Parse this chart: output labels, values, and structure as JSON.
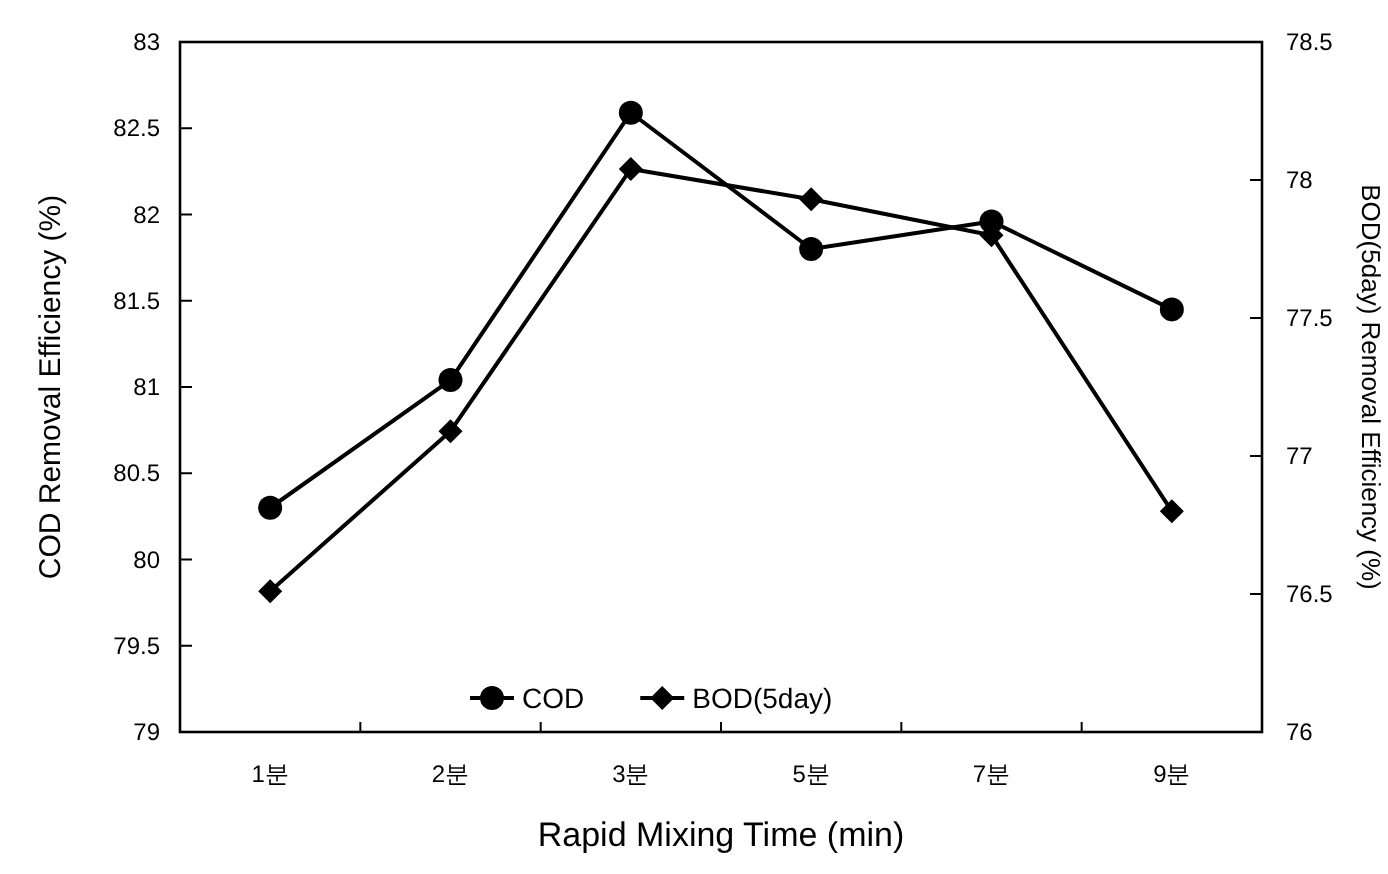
{
  "chart_data": {
    "type": "line",
    "xlabel": "Rapid Mixing Time (min)",
    "ylabel": "COD Removal Efficiency (%)",
    "y2label": "BOD(5day) Removal Efficiency (%)",
    "categories": [
      "1분",
      "2분",
      "3분",
      "5분",
      "7분",
      "9분"
    ],
    "series": [
      {
        "name": "COD",
        "color": "#000000",
        "marker": "circle",
        "values": [
          80.3,
          81.04,
          82.59,
          81.8,
          81.96,
          81.45
        ]
      },
      {
        "name": "BOD(5day)",
        "color": "#000000",
        "marker": "diamond",
        "axis": "y2",
        "values": [
          76.51,
          77.09,
          78.04,
          77.93,
          77.8,
          76.8
        ]
      }
    ],
    "ylim": [
      79,
      83
    ],
    "yticks": [
      79,
      79.5,
      80,
      80.5,
      81,
      81.5,
      82,
      82.5,
      83
    ],
    "y2lim": [
      76,
      78.5
    ],
    "y2ticks": [
      76,
      76.5,
      77,
      77.5,
      78,
      78.5
    ],
    "legend": "bottom",
    "line_style": "solid"
  }
}
